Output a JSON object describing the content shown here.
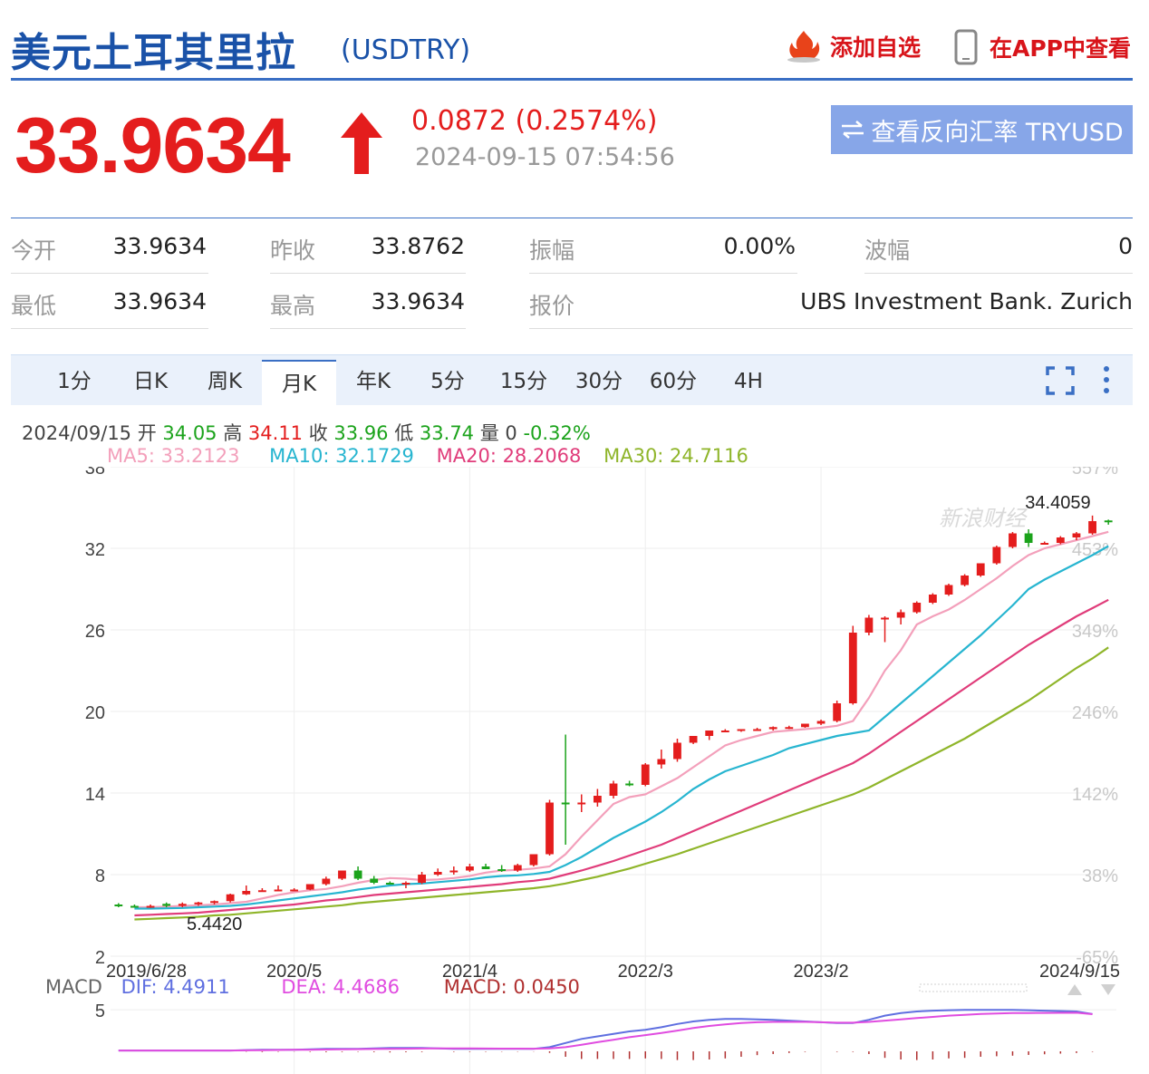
{
  "header": {
    "title": "美元土耳其里拉",
    "code": "(USDTRY)",
    "add_watch": "添加自选",
    "app_view": "在APP中查看"
  },
  "quote": {
    "price": "33.9634",
    "change": "0.0872 (0.2574%)",
    "datetime": "2024-09-15 07:54:56",
    "reverse_button": "查看反向汇率 TRYUSD"
  },
  "stats": {
    "open_label": "今开",
    "open": "33.9634",
    "prev_close_label": "昨收",
    "prev_close": "33.8762",
    "amplitude_label": "振幅",
    "amplitude": "0.00%",
    "wave_label": "波幅",
    "wave": "0",
    "low_label": "最低",
    "low": "33.9634",
    "high_label": "最高",
    "high": "33.9634",
    "quote_label": "报价",
    "quote_source": "UBS Investment Bank. Zurich"
  },
  "tabs": [
    "1分",
    "日K",
    "周K",
    "月K",
    "年K",
    "5分",
    "15分",
    "30分",
    "60分",
    "4H"
  ],
  "active_tab": "月K",
  "ohlc": {
    "date": "2024/09/15",
    "open_label": "开",
    "open": "34.05",
    "high_label": "高",
    "high": "34.11",
    "close_label": "收",
    "close": "33.96",
    "low_label": "低",
    "low": "33.74",
    "volume_label": "量",
    "volume": "0",
    "pct": "-0.32%"
  },
  "ma_labels": {
    "ma5": "MA5: 33.2123",
    "ma10": "MA10: 32.1729",
    "ma20": "MA20: 28.2068",
    "ma30": "MA30: 24.7116"
  },
  "macd_labels": {
    "title": "MACD",
    "dif": "DIF: 4.4911",
    "dea": "DEA: 4.4686",
    "macd": "MACD: 0.0450"
  },
  "watermark": "新浪财经",
  "colors": {
    "up": "#e41d1d",
    "down": "#1ba31b",
    "ma5": "#f3a0bb",
    "ma10": "#27b5d0",
    "ma20": "#e03c7a",
    "ma30": "#8fb52a",
    "dif": "#5f6fe0",
    "dea": "#e04ce0",
    "macd": "#b03030",
    "brand": "#1a52a8"
  },
  "chart_data": {
    "type": "candlestick",
    "period": "monthly",
    "y_ticks": [
      "38",
      "32",
      "26",
      "20",
      "14",
      "8",
      "2"
    ],
    "ylim": [
      2,
      38
    ],
    "pct_ticks": [
      "557%",
      "453%",
      "349%",
      "246%",
      "142%",
      "38%",
      "-65%"
    ],
    "x_ticks": [
      "2019/6/28",
      "2020/5",
      "2021/4",
      "2022/3",
      "2023/2",
      "2024/9/15"
    ],
    "annotations": {
      "max": "34.4059",
      "min": "5.4420"
    },
    "candles": [
      {
        "o": 5.8,
        "h": 5.9,
        "l": 5.6,
        "c": 5.7
      },
      {
        "o": 5.7,
        "h": 5.8,
        "l": 5.6,
        "c": 5.65
      },
      {
        "o": 5.65,
        "h": 5.8,
        "l": 5.55,
        "c": 5.7
      },
      {
        "o": 5.85,
        "h": 5.95,
        "l": 5.6,
        "c": 5.7
      },
      {
        "o": 5.7,
        "h": 5.95,
        "l": 5.6,
        "c": 5.85
      },
      {
        "o": 5.85,
        "h": 6.0,
        "l": 5.7,
        "c": 5.95
      },
      {
        "o": 5.95,
        "h": 6.1,
        "l": 5.8,
        "c": 6.05
      },
      {
        "o": 6.05,
        "h": 6.6,
        "l": 5.95,
        "c": 6.55
      },
      {
        "o": 6.55,
        "h": 7.2,
        "l": 6.5,
        "c": 6.8
      },
      {
        "o": 6.85,
        "h": 7.0,
        "l": 6.8,
        "c": 6.85
      },
      {
        "o": 6.85,
        "h": 7.2,
        "l": 6.8,
        "c": 6.9
      },
      {
        "o": 6.9,
        "h": 7.0,
        "l": 6.8,
        "c": 6.9
      },
      {
        "o": 6.9,
        "h": 7.3,
        "l": 6.85,
        "c": 7.3
      },
      {
        "o": 7.3,
        "h": 7.85,
        "l": 7.2,
        "c": 7.7
      },
      {
        "o": 7.7,
        "h": 8.3,
        "l": 7.6,
        "c": 8.3
      },
      {
        "o": 8.3,
        "h": 8.6,
        "l": 7.6,
        "c": 7.7
      },
      {
        "o": 7.7,
        "h": 7.9,
        "l": 7.3,
        "c": 7.4
      },
      {
        "o": 7.4,
        "h": 7.5,
        "l": 7.3,
        "c": 7.35
      },
      {
        "o": 7.35,
        "h": 7.5,
        "l": 7.0,
        "c": 7.4
      },
      {
        "o": 7.4,
        "h": 8.2,
        "l": 7.3,
        "c": 8.0
      },
      {
        "o": 8.0,
        "h": 8.45,
        "l": 7.9,
        "c": 8.2
      },
      {
        "o": 8.2,
        "h": 8.6,
        "l": 8.0,
        "c": 8.3
      },
      {
        "o": 8.3,
        "h": 8.8,
        "l": 8.2,
        "c": 8.6
      },
      {
        "o": 8.6,
        "h": 8.8,
        "l": 8.4,
        "c": 8.4
      },
      {
        "o": 8.4,
        "h": 8.7,
        "l": 8.2,
        "c": 8.3
      },
      {
        "o": 8.3,
        "h": 8.8,
        "l": 8.2,
        "c": 8.7
      },
      {
        "o": 8.7,
        "h": 9.5,
        "l": 8.6,
        "c": 9.5
      },
      {
        "o": 9.5,
        "h": 13.5,
        "l": 9.4,
        "c": 13.3
      },
      {
        "o": 13.3,
        "h": 18.3,
        "l": 10.2,
        "c": 13.2
      },
      {
        "o": 13.2,
        "h": 13.9,
        "l": 12.6,
        "c": 13.3
      },
      {
        "o": 13.3,
        "h": 14.3,
        "l": 13.0,
        "c": 13.8
      },
      {
        "o": 13.8,
        "h": 14.9,
        "l": 13.6,
        "c": 14.7
      },
      {
        "o": 14.7,
        "h": 14.9,
        "l": 14.5,
        "c": 14.6
      },
      {
        "o": 14.6,
        "h": 16.2,
        "l": 14.5,
        "c": 16.1
      },
      {
        "o": 16.1,
        "h": 17.2,
        "l": 15.8,
        "c": 16.5
      },
      {
        "o": 16.5,
        "h": 18.0,
        "l": 16.3,
        "c": 17.7
      },
      {
        "o": 17.7,
        "h": 18.2,
        "l": 17.6,
        "c": 18.2
      },
      {
        "o": 18.2,
        "h": 18.6,
        "l": 17.9,
        "c": 18.6
      },
      {
        "o": 18.6,
        "h": 18.7,
        "l": 18.5,
        "c": 18.6
      },
      {
        "o": 18.6,
        "h": 18.7,
        "l": 18.5,
        "c": 18.7
      },
      {
        "o": 18.7,
        "h": 18.8,
        "l": 18.6,
        "c": 18.7
      },
      {
        "o": 18.7,
        "h": 18.9,
        "l": 18.6,
        "c": 18.85
      },
      {
        "o": 18.85,
        "h": 18.95,
        "l": 18.7,
        "c": 18.85
      },
      {
        "o": 18.85,
        "h": 19.1,
        "l": 18.8,
        "c": 19.1
      },
      {
        "o": 19.1,
        "h": 19.4,
        "l": 19.0,
        "c": 19.3
      },
      {
        "o": 19.3,
        "h": 20.8,
        "l": 19.2,
        "c": 20.6
      },
      {
        "o": 20.6,
        "h": 26.3,
        "l": 20.5,
        "c": 25.8
      },
      {
        "o": 25.8,
        "h": 27.1,
        "l": 25.6,
        "c": 26.9
      },
      {
        "o": 26.9,
        "h": 27.0,
        "l": 25.1,
        "c": 26.9
      },
      {
        "o": 26.9,
        "h": 27.5,
        "l": 26.4,
        "c": 27.3
      },
      {
        "o": 27.3,
        "h": 28.1,
        "l": 27.2,
        "c": 28.0
      },
      {
        "o": 28.0,
        "h": 28.7,
        "l": 27.9,
        "c": 28.6
      },
      {
        "o": 28.6,
        "h": 29.4,
        "l": 28.5,
        "c": 29.3
      },
      {
        "o": 29.3,
        "h": 30.1,
        "l": 29.2,
        "c": 30.0
      },
      {
        "o": 30.0,
        "h": 30.9,
        "l": 29.9,
        "c": 30.9
      },
      {
        "o": 30.9,
        "h": 32.2,
        "l": 30.8,
        "c": 32.1
      },
      {
        "o": 32.1,
        "h": 33.2,
        "l": 32.0,
        "c": 33.1
      },
      {
        "o": 33.1,
        "h": 33.4,
        "l": 32.1,
        "c": 32.4
      },
      {
        "o": 32.4,
        "h": 32.5,
        "l": 32.3,
        "c": 32.4
      },
      {
        "o": 32.4,
        "h": 32.9,
        "l": 32.3,
        "c": 32.8
      },
      {
        "o": 32.8,
        "h": 33.2,
        "l": 32.6,
        "c": 33.1
      },
      {
        "o": 33.1,
        "h": 34.41,
        "l": 33.0,
        "c": 34.0
      },
      {
        "o": 34.05,
        "h": 34.11,
        "l": 33.74,
        "c": 33.96
      }
    ],
    "series": [
      {
        "name": "MA5",
        "values": [
          5.6,
          5.6,
          5.65,
          5.7,
          5.75,
          5.8,
          5.9,
          6.0,
          6.25,
          6.5,
          6.7,
          6.85,
          6.95,
          7.15,
          7.4,
          7.6,
          7.75,
          7.7,
          7.6,
          7.65,
          7.75,
          7.9,
          8.15,
          8.3,
          8.35,
          8.45,
          8.6,
          9.5,
          10.8,
          12.0,
          13.2,
          13.7,
          13.9,
          14.5,
          15.1,
          15.9,
          16.7,
          17.5,
          17.9,
          18.2,
          18.5,
          18.6,
          18.7,
          18.8,
          18.95,
          19.3,
          21.0,
          23.0,
          24.5,
          26.4,
          27.0,
          27.5,
          28.2,
          29.0,
          29.8,
          30.7,
          31.5,
          32.0,
          32.3,
          32.6,
          32.9,
          33.21
        ]
      },
      {
        "name": "MA10",
        "values": [
          5.5,
          5.5,
          5.52,
          5.55,
          5.6,
          5.65,
          5.7,
          5.8,
          5.95,
          6.1,
          6.25,
          6.4,
          6.55,
          6.7,
          6.9,
          7.05,
          7.2,
          7.3,
          7.35,
          7.45,
          7.55,
          7.65,
          7.8,
          7.9,
          7.95,
          8.05,
          8.2,
          8.7,
          9.3,
          10.0,
          10.7,
          11.3,
          11.9,
          12.6,
          13.4,
          14.3,
          15.0,
          15.6,
          16.0,
          16.4,
          16.8,
          17.3,
          17.6,
          17.9,
          18.2,
          18.4,
          18.6,
          19.6,
          20.6,
          21.6,
          22.6,
          23.6,
          24.6,
          25.6,
          26.7,
          27.8,
          29.0,
          29.7,
          30.3,
          30.9,
          31.5,
          32.17
        ]
      },
      {
        "name": "MA20",
        "values": [
          5.0,
          5.05,
          5.1,
          5.15,
          5.2,
          5.3,
          5.4,
          5.5,
          5.6,
          5.7,
          5.8,
          5.95,
          6.1,
          6.2,
          6.35,
          6.5,
          6.6,
          6.7,
          6.8,
          6.9,
          7.0,
          7.1,
          7.2,
          7.3,
          7.45,
          7.55,
          7.7,
          8.0,
          8.3,
          8.65,
          9.0,
          9.4,
          9.8,
          10.2,
          10.7,
          11.2,
          11.7,
          12.2,
          12.7,
          13.2,
          13.7,
          14.2,
          14.7,
          15.2,
          15.7,
          16.2,
          16.9,
          17.7,
          18.5,
          19.3,
          20.1,
          20.9,
          21.7,
          22.5,
          23.3,
          24.1,
          24.9,
          25.6,
          26.3,
          27.0,
          27.6,
          28.21
        ]
      },
      {
        "name": "MA30",
        "values": [
          4.7,
          4.75,
          4.8,
          4.85,
          4.9,
          5.0,
          5.05,
          5.15,
          5.25,
          5.35,
          5.45,
          5.55,
          5.65,
          5.75,
          5.9,
          6.0,
          6.1,
          6.2,
          6.3,
          6.4,
          6.5,
          6.6,
          6.7,
          6.8,
          6.9,
          7.0,
          7.15,
          7.35,
          7.6,
          7.85,
          8.15,
          8.45,
          8.8,
          9.15,
          9.5,
          9.9,
          10.3,
          10.7,
          11.1,
          11.5,
          11.9,
          12.3,
          12.7,
          13.1,
          13.5,
          13.9,
          14.4,
          15.0,
          15.6,
          16.2,
          16.8,
          17.4,
          18.0,
          18.7,
          19.4,
          20.1,
          20.8,
          21.6,
          22.4,
          23.2,
          23.9,
          24.71
        ]
      }
    ],
    "macd": {
      "ylim": [
        0,
        6
      ],
      "y_ticks": [
        "5"
      ],
      "dif": [
        0.1,
        0.1,
        0.1,
        0.1,
        0.1,
        0.1,
        0.1,
        0.1,
        0.15,
        0.2,
        0.2,
        0.2,
        0.25,
        0.3,
        0.3,
        0.3,
        0.35,
        0.4,
        0.4,
        0.4,
        0.35,
        0.3,
        0.3,
        0.3,
        0.3,
        0.3,
        0.3,
        0.5,
        1.0,
        1.5,
        1.8,
        2.1,
        2.4,
        2.6,
        2.9,
        3.3,
        3.6,
        3.8,
        3.9,
        3.9,
        3.85,
        3.8,
        3.7,
        3.6,
        3.5,
        3.4,
        3.4,
        3.8,
        4.3,
        4.6,
        4.8,
        4.9,
        4.95,
        5.0,
        5.0,
        5.0,
        5.0,
        4.95,
        4.9,
        4.85,
        4.8,
        4.49
      ],
      "dea": [
        0.1,
        0.1,
        0.1,
        0.1,
        0.1,
        0.1,
        0.1,
        0.1,
        0.12,
        0.14,
        0.16,
        0.18,
        0.2,
        0.22,
        0.24,
        0.26,
        0.28,
        0.3,
        0.32,
        0.34,
        0.35,
        0.35,
        0.35,
        0.34,
        0.33,
        0.33,
        0.32,
        0.36,
        0.5,
        0.8,
        1.1,
        1.4,
        1.7,
        1.95,
        2.2,
        2.5,
        2.8,
        3.05,
        3.25,
        3.4,
        3.5,
        3.55,
        3.55,
        3.55,
        3.5,
        3.45,
        3.45,
        3.55,
        3.7,
        3.85,
        4.0,
        4.15,
        4.3,
        4.4,
        4.5,
        4.55,
        4.6,
        4.62,
        4.63,
        4.64,
        4.65,
        4.47
      ],
      "hist": [
        0,
        0,
        0,
        0,
        0,
        0,
        0,
        0,
        0.03,
        0.06,
        0.04,
        0.02,
        0.05,
        0.08,
        0.06,
        0.04,
        0.07,
        0.1,
        0.08,
        0.06,
        0,
        -0.05,
        -0.05,
        -0.04,
        -0.03,
        -0.03,
        -0.02,
        0.14,
        0.5,
        0.7,
        0.7,
        0.7,
        0.7,
        0.65,
        0.7,
        0.8,
        0.8,
        0.75,
        0.65,
        0.5,
        0.35,
        0.25,
        0.15,
        0.05,
        0,
        -0.05,
        -0.05,
        0.25,
        0.6,
        0.75,
        0.8,
        0.75,
        0.65,
        0.6,
        0.5,
        0.45,
        0.4,
        0.33,
        0.27,
        0.21,
        0.15,
        0.045
      ]
    }
  }
}
